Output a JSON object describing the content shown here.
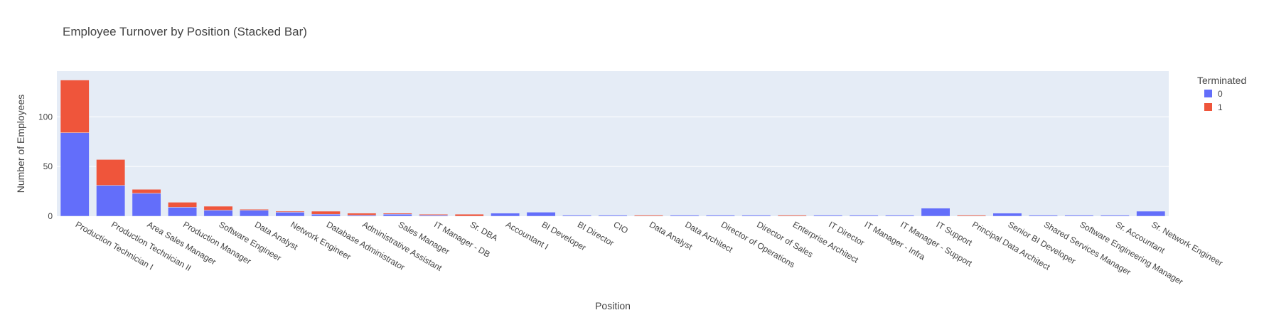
{
  "chart_data": {
    "type": "bar",
    "stacked": true,
    "title": "Employee Turnover by Position (Stacked Bar)",
    "xlabel": "Position",
    "ylabel": "Number of Employees",
    "ylim": [
      0,
      146
    ],
    "yticks": [
      0,
      50,
      100
    ],
    "grid": true,
    "legend": {
      "title": "Terminated",
      "position": "right"
    },
    "categories": [
      "Production Technician I",
      "Production Technician II",
      "Area Sales Manager",
      "Production Manager",
      "Software Engineer",
      "Data Analyst",
      "Network Engineer",
      "Database Administrator",
      "Administrative Assistant",
      "Sales Manager",
      "IT Manager - DB",
      "Sr. DBA",
      "Accountant I",
      "BI Developer",
      "BI Director",
      "CIO",
      "Data Analyst ",
      "Data Architect",
      "Director of Operations",
      "Director of Sales",
      "Enterprise Architect",
      "IT Director",
      "IT Manager - Infra",
      "IT Manager - Support",
      "IT Support",
      "Principal Data Architect",
      "Senior BI Developer",
      "Shared Services Manager",
      "Software Engineering Manager",
      "Sr. Accountant",
      "Sr. Network Engineer"
    ],
    "series": [
      {
        "name": "0",
        "color": "#636efa",
        "values": [
          84,
          31,
          23,
          9,
          6,
          6,
          4,
          2,
          1,
          2,
          1,
          0,
          3,
          4,
          1,
          1,
          0,
          1,
          1,
          1,
          0,
          1,
          1,
          1,
          8,
          0,
          3,
          1,
          1,
          1,
          5
        ]
      },
      {
        "name": "1",
        "color": "#ef553b",
        "values": [
          53,
          26,
          4,
          5,
          4,
          1,
          1,
          3,
          2,
          1,
          1,
          2,
          0,
          0,
          0,
          0,
          1,
          0,
          0,
          0,
          1,
          0,
          0,
          0,
          0,
          1,
          0,
          0,
          0,
          0,
          0
        ]
      }
    ]
  }
}
